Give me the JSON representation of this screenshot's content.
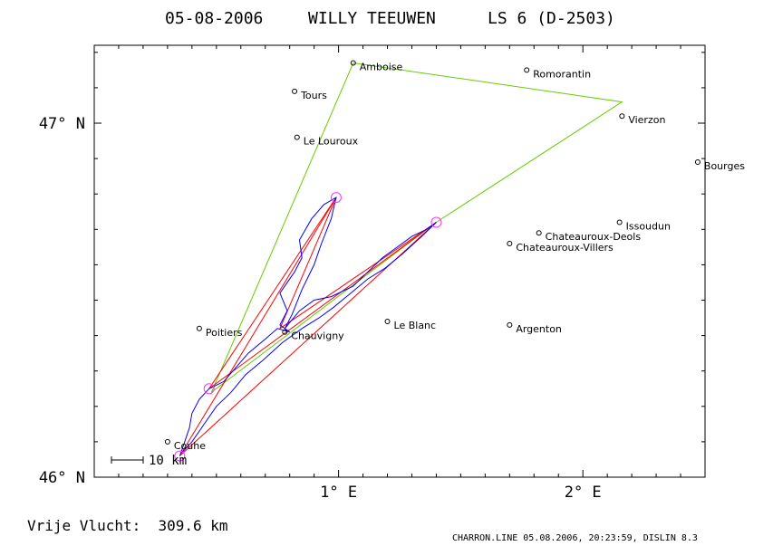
{
  "header": {
    "date": "05-08-2006",
    "pilot": "WILLY TEEUWEN",
    "glider": "LS 6 (D-2503)"
  },
  "footer": {
    "distance_text": "Vrije Vlucht:  309.6 km",
    "credit": "CHARRON.LINE 05.08.2006, 20:23:59, DISLIN 8.3",
    "scale_label": "10 km"
  },
  "colors": {
    "frame": "#000000",
    "track": "#0000ff",
    "task": "#66cc00",
    "legs": "#ff0000",
    "turnpoint": "#ff33ff"
  },
  "chart_data": {
    "type": "scatter",
    "title": "05-08-2006   WILLY TEEUWEN   LS 6 (D-2503)",
    "xlim": [
      0.0,
      2.5
    ],
    "ylim": [
      46.0,
      47.22
    ],
    "x_ticks": [
      {
        "value": 1,
        "label": "1° E"
      },
      {
        "value": 2,
        "label": "2° E"
      }
    ],
    "y_ticks": [
      {
        "value": 46,
        "label": "46° N"
      },
      {
        "value": 47,
        "label": "47° N"
      }
    ],
    "places": [
      {
        "name": "Amboise",
        "lon": 1.06,
        "lat": 47.17
      },
      {
        "name": "Romorantin",
        "lon": 1.77,
        "lat": 47.15
      },
      {
        "name": "Tours",
        "lon": 0.82,
        "lat": 47.09
      },
      {
        "name": "Vierzon",
        "lon": 2.16,
        "lat": 47.02
      },
      {
        "name": "Le Louroux",
        "lon": 0.83,
        "lat": 46.96
      },
      {
        "name": "Bourges",
        "lon": 2.47,
        "lat": 46.89
      },
      {
        "name": "Issoudun",
        "lon": 2.15,
        "lat": 46.72
      },
      {
        "name": "Chateauroux-Deols",
        "lon": 1.82,
        "lat": 46.69
      },
      {
        "name": "Chateauroux-Villers",
        "lon": 1.7,
        "lat": 46.66
      },
      {
        "name": "Le Blanc",
        "lon": 1.2,
        "lat": 46.44
      },
      {
        "name": "Argenton",
        "lon": 1.7,
        "lat": 46.43
      },
      {
        "name": "Poitiers",
        "lon": 0.43,
        "lat": 46.42
      },
      {
        "name": "Chauvigny",
        "lon": 0.78,
        "lat": 46.41
      },
      {
        "name": "Couhe",
        "lon": 0.3,
        "lat": 46.1
      }
    ],
    "task_polygon": [
      {
        "lon": 0.48,
        "lat": 46.24
      },
      {
        "lon": 1.06,
        "lat": 47.17
      },
      {
        "lon": 2.16,
        "lat": 47.06
      },
      {
        "lon": 1.4,
        "lat": 46.72
      },
      {
        "lon": 0.48,
        "lat": 46.24
      }
    ],
    "turnpoints": [
      {
        "lon": 0.47,
        "lat": 46.25
      },
      {
        "lon": 0.99,
        "lat": 46.79
      },
      {
        "lon": 1.4,
        "lat": 46.72
      },
      {
        "lon": 0.35,
        "lat": 46.06
      }
    ],
    "legs": [
      [
        {
          "lon": 0.35,
          "lat": 46.06
        },
        {
          "lon": 0.99,
          "lat": 46.79
        }
      ],
      [
        {
          "lon": 0.35,
          "lat": 46.06
        },
        {
          "lon": 1.4,
          "lat": 46.72
        }
      ],
      [
        {
          "lon": 0.47,
          "lat": 46.25
        },
        {
          "lon": 0.99,
          "lat": 46.79
        }
      ],
      [
        {
          "lon": 0.47,
          "lat": 46.25
        },
        {
          "lon": 1.4,
          "lat": 46.72
        }
      ],
      [
        {
          "lon": 0.76,
          "lat": 46.42
        },
        {
          "lon": 0.99,
          "lat": 46.79
        }
      ],
      [
        {
          "lon": 0.76,
          "lat": 46.42
        },
        {
          "lon": 1.4,
          "lat": 46.72
        }
      ]
    ],
    "track": [
      {
        "lon": 0.35,
        "lat": 46.06
      },
      {
        "lon": 0.37,
        "lat": 46.1
      },
      {
        "lon": 0.39,
        "lat": 46.14
      },
      {
        "lon": 0.4,
        "lat": 46.18
      },
      {
        "lon": 0.43,
        "lat": 46.22
      },
      {
        "lon": 0.47,
        "lat": 46.25
      },
      {
        "lon": 0.53,
        "lat": 46.27
      },
      {
        "lon": 0.58,
        "lat": 46.31
      },
      {
        "lon": 0.63,
        "lat": 46.35
      },
      {
        "lon": 0.7,
        "lat": 46.39
      },
      {
        "lon": 0.75,
        "lat": 46.42
      },
      {
        "lon": 0.8,
        "lat": 46.41
      },
      {
        "lon": 0.76,
        "lat": 46.43
      },
      {
        "lon": 0.79,
        "lat": 46.47
      },
      {
        "lon": 0.76,
        "lat": 46.52
      },
      {
        "lon": 0.82,
        "lat": 46.58
      },
      {
        "lon": 0.85,
        "lat": 46.62
      },
      {
        "lon": 0.84,
        "lat": 46.67
      },
      {
        "lon": 0.89,
        "lat": 46.73
      },
      {
        "lon": 0.94,
        "lat": 46.77
      },
      {
        "lon": 0.99,
        "lat": 46.79
      },
      {
        "lon": 0.97,
        "lat": 46.73
      },
      {
        "lon": 0.93,
        "lat": 46.66
      },
      {
        "lon": 0.9,
        "lat": 46.6
      },
      {
        "lon": 0.85,
        "lat": 46.53
      },
      {
        "lon": 0.81,
        "lat": 46.46
      },
      {
        "lon": 0.78,
        "lat": 46.42
      },
      {
        "lon": 0.84,
        "lat": 46.47
      },
      {
        "lon": 0.9,
        "lat": 46.5
      },
      {
        "lon": 0.97,
        "lat": 46.51
      },
      {
        "lon": 1.06,
        "lat": 46.54
      },
      {
        "lon": 1.12,
        "lat": 46.58
      },
      {
        "lon": 1.18,
        "lat": 46.62
      },
      {
        "lon": 1.24,
        "lat": 46.65
      },
      {
        "lon": 1.3,
        "lat": 46.68
      },
      {
        "lon": 1.36,
        "lat": 46.7
      },
      {
        "lon": 1.4,
        "lat": 46.72
      },
      {
        "lon": 1.34,
        "lat": 46.68
      },
      {
        "lon": 1.26,
        "lat": 46.63
      },
      {
        "lon": 1.19,
        "lat": 46.59
      },
      {
        "lon": 1.12,
        "lat": 46.56
      },
      {
        "lon": 1.05,
        "lat": 46.52
      },
      {
        "lon": 0.98,
        "lat": 46.48
      },
      {
        "lon": 0.92,
        "lat": 46.45
      },
      {
        "lon": 0.85,
        "lat": 46.42
      },
      {
        "lon": 0.77,
        "lat": 46.38
      },
      {
        "lon": 0.69,
        "lat": 46.33
      },
      {
        "lon": 0.62,
        "lat": 46.29
      },
      {
        "lon": 0.56,
        "lat": 46.24
      },
      {
        "lon": 0.5,
        "lat": 46.2
      },
      {
        "lon": 0.45,
        "lat": 46.15
      },
      {
        "lon": 0.4,
        "lat": 46.1
      },
      {
        "lon": 0.36,
        "lat": 46.07
      }
    ]
  }
}
